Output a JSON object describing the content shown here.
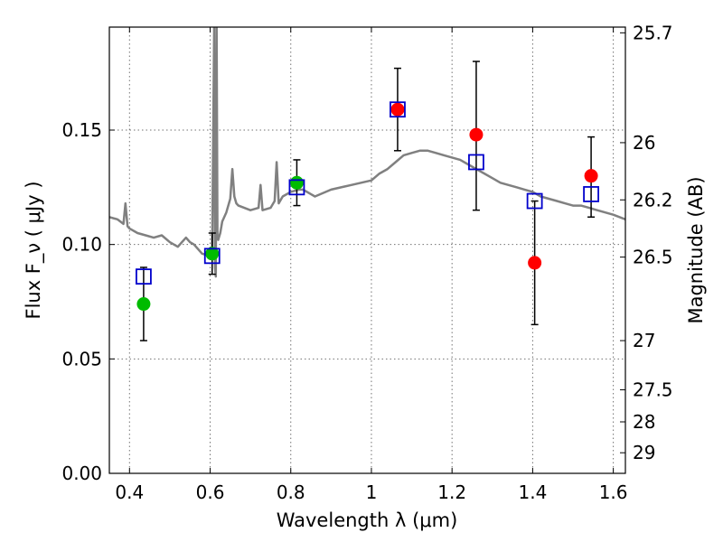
{
  "chart_data": {
    "type": "scatter",
    "title": "",
    "xlabel": "Wavelength  λ (μm)",
    "ylabel": "Flux  F_ν ( μJy )",
    "y2label": "Magnitude (AB)",
    "xlim": [
      0.35,
      1.63
    ],
    "ylim": [
      0.0,
      0.195
    ],
    "grid": true,
    "x_ticks": [
      0.4,
      0.6,
      0.8,
      1.0,
      1.2,
      1.4,
      1.6
    ],
    "x_tick_labels": [
      "0.4",
      "0.6",
      "0.8",
      "1",
      "1.2",
      "1.4",
      "1.6"
    ],
    "y_ticks": [
      0.0,
      0.05,
      0.1,
      0.15
    ],
    "y_tick_labels": [
      "0.00",
      "0.05",
      "0.10",
      "0.15"
    ],
    "y2_ticks": [
      {
        "label": "25.7",
        "flux": 0.1925
      },
      {
        "label": "26",
        "flux": 0.1445
      },
      {
        "label": "26.2",
        "flux": 0.1195
      },
      {
        "label": "26.5",
        "flux": 0.0945
      },
      {
        "label": "27",
        "flux": 0.058
      },
      {
        "label": "27.5",
        "flux": 0.0365
      },
      {
        "label": "28",
        "flux": 0.0225
      },
      {
        "label": "29",
        "flux": 0.009
      }
    ],
    "series": [
      {
        "type": "line",
        "color": "#808080",
        "x": [
          0.35,
          0.37,
          0.385,
          0.39,
          0.395,
          0.4,
          0.42,
          0.44,
          0.46,
          0.48,
          0.5,
          0.52,
          0.53,
          0.54,
          0.55,
          0.56,
          0.57,
          0.58,
          0.6,
          0.605,
          0.61,
          0.612,
          0.614,
          0.616,
          0.618,
          0.62,
          0.625,
          0.63,
          0.64,
          0.65,
          0.655,
          0.66,
          0.665,
          0.67,
          0.7,
          0.72,
          0.725,
          0.73,
          0.75,
          0.76,
          0.765,
          0.77,
          0.78,
          0.8,
          0.82,
          0.83,
          0.84,
          0.85,
          0.86,
          0.9,
          0.95,
          1.0,
          1.02,
          1.04,
          1.06,
          1.08,
          1.1,
          1.12,
          1.14,
          1.16,
          1.18,
          1.2,
          1.22,
          1.24,
          1.26,
          1.28,
          1.3,
          1.32,
          1.34,
          1.36,
          1.38,
          1.4,
          1.42,
          1.44,
          1.46,
          1.48,
          1.5,
          1.52,
          1.54,
          1.56,
          1.58,
          1.6,
          1.63
        ],
        "y": [
          0.112,
          0.111,
          0.109,
          0.118,
          0.108,
          0.107,
          0.105,
          0.104,
          0.103,
          0.104,
          0.101,
          0.099,
          0.101,
          0.103,
          0.101,
          0.1,
          0.098,
          0.096,
          0.095,
          0.099,
          0.195,
          0.09,
          0.086,
          0.195,
          0.104,
          0.102,
          0.105,
          0.11,
          0.114,
          0.12,
          0.133,
          0.121,
          0.118,
          0.117,
          0.115,
          0.116,
          0.126,
          0.115,
          0.116,
          0.119,
          0.136,
          0.118,
          0.121,
          0.123,
          0.124,
          0.124,
          0.123,
          0.122,
          0.121,
          0.124,
          0.126,
          0.128,
          0.131,
          0.133,
          0.136,
          0.139,
          0.14,
          0.141,
          0.141,
          0.14,
          0.139,
          0.138,
          0.137,
          0.135,
          0.133,
          0.131,
          0.129,
          0.127,
          0.126,
          0.125,
          0.124,
          0.123,
          0.121,
          0.12,
          0.119,
          0.118,
          0.117,
          0.117,
          0.116,
          0.115,
          0.114,
          0.113,
          0.111
        ]
      },
      {
        "type": "errorbar",
        "color": "#000000",
        "points": [
          {
            "x": 0.435,
            "y": 0.074,
            "lo": 0.058,
            "hi": 0.09
          },
          {
            "x": 0.605,
            "y": 0.096,
            "lo": 0.087,
            "hi": 0.105
          },
          {
            "x": 0.815,
            "y": 0.127,
            "lo": 0.117,
            "hi": 0.137
          },
          {
            "x": 1.065,
            "y": 0.159,
            "lo": 0.141,
            "hi": 0.177
          },
          {
            "x": 1.26,
            "y": 0.148,
            "lo": 0.115,
            "hi": 0.18
          },
          {
            "x": 1.405,
            "y": 0.092,
            "lo": 0.065,
            "hi": 0.119
          },
          {
            "x": 1.545,
            "y": 0.13,
            "lo": 0.112,
            "hi": 0.147
          }
        ]
      },
      {
        "type": "scatter",
        "marker": "circle",
        "color": "#00bb00",
        "x": [
          0.435,
          0.605,
          0.815
        ],
        "y": [
          0.074,
          0.096,
          0.127
        ]
      },
      {
        "type": "scatter",
        "marker": "circle",
        "color": "#ff0000",
        "x": [
          1.065,
          1.26,
          1.405,
          1.545
        ],
        "y": [
          0.159,
          0.148,
          0.092,
          0.13
        ]
      },
      {
        "type": "scatter",
        "marker": "open-square",
        "color": "#0000cc",
        "x": [
          0.435,
          0.605,
          0.815,
          1.065,
          1.26,
          1.405,
          1.545
        ],
        "y": [
          0.086,
          0.095,
          0.125,
          0.159,
          0.136,
          0.119,
          0.122
        ]
      }
    ]
  }
}
